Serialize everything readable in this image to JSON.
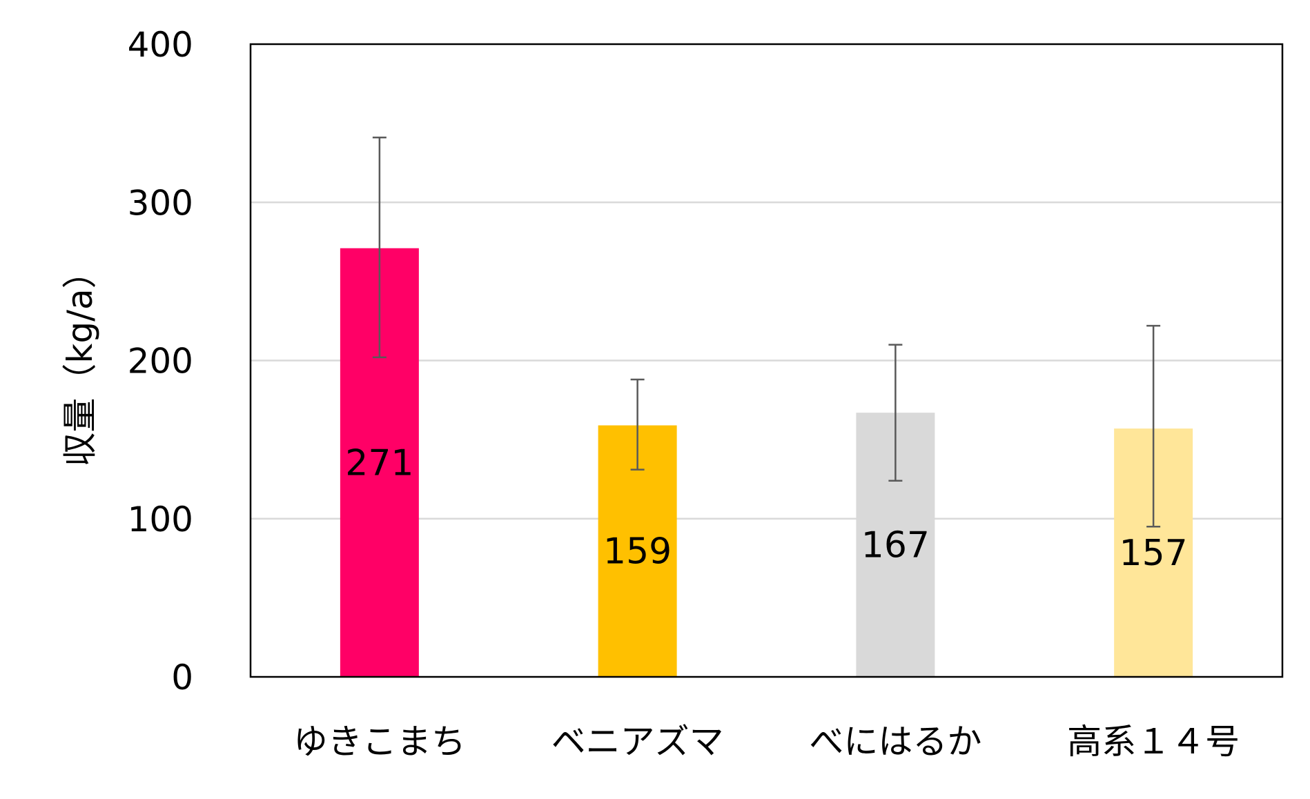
{
  "chart_data": {
    "type": "bar",
    "title": "",
    "xlabel": "",
    "ylabel": "収量（kg/a）",
    "ylim": [
      0,
      400
    ],
    "yticks": [
      0,
      100,
      200,
      300,
      400
    ],
    "grid": true,
    "categories": [
      "ゆきこまち",
      "ベニアズマ",
      "べにはるか",
      "高系１４号"
    ],
    "values": [
      271,
      159,
      167,
      157
    ],
    "error_upper": [
      341,
      188,
      210,
      222
    ],
    "error_lower": [
      202,
      131,
      124,
      95
    ],
    "data_labels": [
      "271",
      "159",
      "167",
      "157"
    ],
    "colors": [
      "#ff0066",
      "#ffc000",
      "#d9d9d9",
      "#ffe699"
    ],
    "grid_color": "#d9d9d9",
    "error_bar_color": "#595959"
  }
}
